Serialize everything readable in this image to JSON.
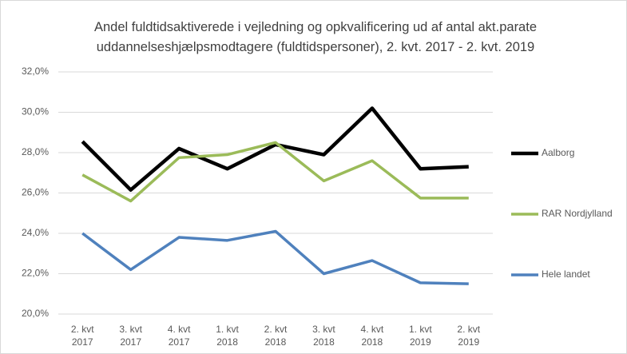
{
  "chart_data": {
    "type": "line",
    "title": "Andel fuldtidsaktiverede i vejledning og opkvalificering ud af antal akt.parate uddannelseshjælpsmodtagere (fuldtidspersoner), 2. kvt. 2017 - 2. kvt. 2019",
    "categories": [
      "2. kvt 2017",
      "3. kvt 2017",
      "4. kvt 2017",
      "1. kvt 2018",
      "2. kvt 2018",
      "3. kvt 2018",
      "4. kvt 2018",
      "1. kvt 2019",
      "2. kvt 2019"
    ],
    "series": [
      {
        "name": "Aalborg",
        "color": "#000000",
        "values": [
          28.55,
          26.15,
          28.2,
          27.2,
          28.4,
          27.9,
          30.2,
          27.2,
          27.3
        ]
      },
      {
        "name": "RAR Nordjylland",
        "color": "#9bbb59",
        "values": [
          26.9,
          25.6,
          27.75,
          27.9,
          28.5,
          26.6,
          27.6,
          25.75,
          25.75
        ]
      },
      {
        "name": "Hele landet",
        "color": "#4f81bd",
        "values": [
          24.0,
          22.2,
          23.8,
          23.65,
          24.1,
          22.0,
          22.65,
          21.55,
          21.5
        ]
      }
    ],
    "ylim": [
      20,
      32
    ],
    "yticks": [
      {
        "value": 20,
        "label": "20,0%"
      },
      {
        "value": 22,
        "label": "22,0%"
      },
      {
        "value": 24,
        "label": "24,0%"
      },
      {
        "value": 26,
        "label": "26,0%"
      },
      {
        "value": 28,
        "label": "28,0%"
      },
      {
        "value": 30,
        "label": "30,0%"
      },
      {
        "value": 32,
        "label": "32,0%"
      }
    ],
    "grid": true,
    "legend": "right"
  }
}
